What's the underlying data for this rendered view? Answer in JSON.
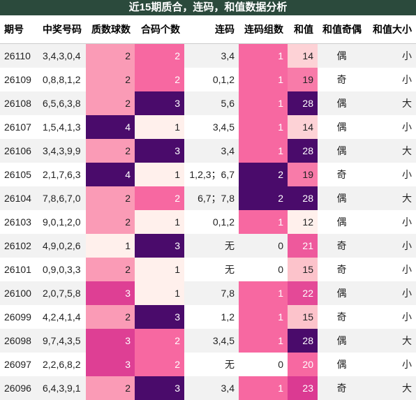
{
  "title": "近15期质合，连码，和值数据分析",
  "table": {
    "columns": [
      "期号",
      "中奖号码",
      "质数球数",
      "合码个数",
      "连码",
      "连码组数",
      "和值",
      "和值奇偶",
      "和值大小"
    ],
    "rows": [
      [
        26110,
        "3,4,3,0,4",
        2,
        2,
        "3,4",
        1,
        14,
        "偶",
        "小"
      ],
      [
        26109,
        "0,8,8,1,2",
        2,
        2,
        "0,1,2",
        1,
        19,
        "奇",
        "小"
      ],
      [
        26108,
        "6,5,6,3,8",
        2,
        3,
        "5,6",
        1,
        28,
        "偶",
        "大"
      ],
      [
        26107,
        "1,5,4,1,3",
        4,
        1,
        "3,4,5",
        1,
        14,
        "偶",
        "小"
      ],
      [
        26106,
        "3,4,3,9,9",
        2,
        3,
        "3,4",
        1,
        28,
        "偶",
        "大"
      ],
      [
        26105,
        "2,1,7,6,3",
        4,
        1,
        "1,2,3；6,7",
        2,
        19,
        "奇",
        "小"
      ],
      [
        26104,
        "7,8,6,7,0",
        2,
        2,
        "6,7；7,8",
        2,
        28,
        "偶",
        "大"
      ],
      [
        26103,
        "9,0,1,2,0",
        2,
        1,
        "0,1,2",
        1,
        12,
        "偶",
        "小"
      ],
      [
        26102,
        "4,9,0,2,6",
        1,
        3,
        "无",
        0,
        21,
        "奇",
        "小"
      ],
      [
        26101,
        "0,9,0,3,3",
        2,
        1,
        "无",
        0,
        15,
        "奇",
        "小"
      ],
      [
        26100,
        "2,0,7,5,8",
        3,
        1,
        "7,8",
        1,
        22,
        "偶",
        "小"
      ],
      [
        26099,
        "4,2,4,1,4",
        2,
        3,
        "1,2",
        1,
        15,
        "奇",
        "小"
      ],
      [
        26098,
        "9,7,4,3,5",
        3,
        2,
        "3,4,5",
        1,
        28,
        "偶",
        "大"
      ],
      [
        26097,
        "2,2,6,8,2",
        3,
        2,
        "无",
        0,
        20,
        "偶",
        "小"
      ],
      [
        26096,
        "6,4,3,9,1",
        2,
        3,
        "3,4",
        1,
        23,
        "奇",
        "大"
      ]
    ]
  }
}
